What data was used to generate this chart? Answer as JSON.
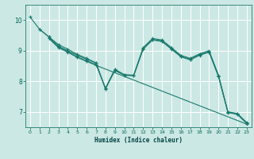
{
  "xlabel": "Humidex (Indice chaleur)",
  "bg_color": "#cce8e4",
  "line_color": "#1a7a6e",
  "grid_color": "#ffffff",
  "grid_minor_color": "#e8f5f2",
  "xlim": [
    -0.5,
    23.5
  ],
  "ylim": [
    6.5,
    10.5
  ],
  "xticks": [
    0,
    1,
    2,
    3,
    4,
    5,
    6,
    7,
    8,
    9,
    10,
    11,
    12,
    13,
    14,
    15,
    16,
    17,
    18,
    19,
    20,
    21,
    22,
    23
  ],
  "yticks": [
    7,
    8,
    9,
    10
  ],
  "series": [
    {
      "x": [
        0,
        1,
        2,
        3,
        4,
        5,
        6,
        7,
        8,
        9,
        10,
        11,
        12,
        13,
        14,
        15,
        16,
        17,
        18,
        19,
        20,
        21,
        22,
        23
      ],
      "y": [
        10.1,
        9.7,
        9.45,
        9.2,
        9.05,
        8.88,
        8.75,
        8.6,
        7.75,
        8.4,
        8.2,
        8.2,
        9.1,
        9.4,
        9.35,
        9.1,
        8.85,
        8.75,
        8.9,
        9.0,
        8.2,
        7.0,
        6.95,
        6.65
      ]
    },
    {
      "x": [
        1,
        2,
        3,
        4,
        5,
        6,
        7,
        8,
        9,
        10,
        11,
        12,
        13,
        14,
        15,
        16,
        17,
        18,
        19,
        20,
        21,
        22,
        23
      ],
      "y": [
        9.7,
        9.45,
        9.15,
        9.0,
        8.85,
        8.72,
        8.6,
        7.75,
        8.35,
        8.2,
        8.18,
        9.05,
        9.35,
        9.3,
        9.05,
        8.8,
        8.7,
        8.85,
        8.95,
        8.15,
        6.98,
        6.92,
        6.62
      ]
    },
    {
      "x": [
        2,
        3,
        4,
        5,
        6,
        7,
        23
      ],
      "y": [
        9.4,
        9.1,
        8.95,
        8.78,
        8.65,
        8.52,
        6.6
      ]
    },
    {
      "x": [
        2,
        3,
        4,
        5,
        6,
        7,
        8,
        9,
        10,
        11,
        12,
        13,
        14,
        15,
        16,
        17,
        18,
        19,
        20,
        21,
        22,
        23
      ],
      "y": [
        9.42,
        9.12,
        8.97,
        8.8,
        8.67,
        8.55,
        7.78,
        8.38,
        8.22,
        8.2,
        9.07,
        9.37,
        9.32,
        9.07,
        8.82,
        8.72,
        8.87,
        8.97,
        8.17,
        7.0,
        6.93,
        6.63
      ]
    }
  ]
}
